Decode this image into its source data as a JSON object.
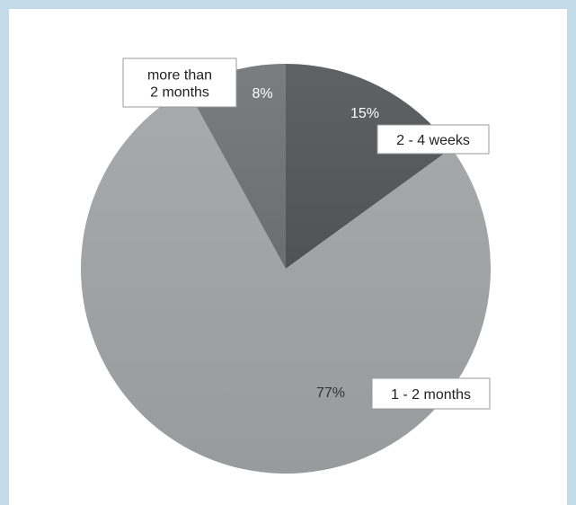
{
  "chart_data": {
    "type": "pie",
    "slices": [
      {
        "label": "2 - 4 weeks",
        "value": 15,
        "display": "15%",
        "color": "#555759"
      },
      {
        "label": "1 - 2 months",
        "value": 77,
        "display": "77%",
        "color": "#a2a4a6"
      },
      {
        "label": "more than 2 months",
        "label_lines": [
          "more than",
          "2 months"
        ],
        "value": 8,
        "display": "8%",
        "color": "#727476"
      }
    ]
  },
  "colors": {
    "frame": "#c3dbe8",
    "background": "#ffffff"
  }
}
